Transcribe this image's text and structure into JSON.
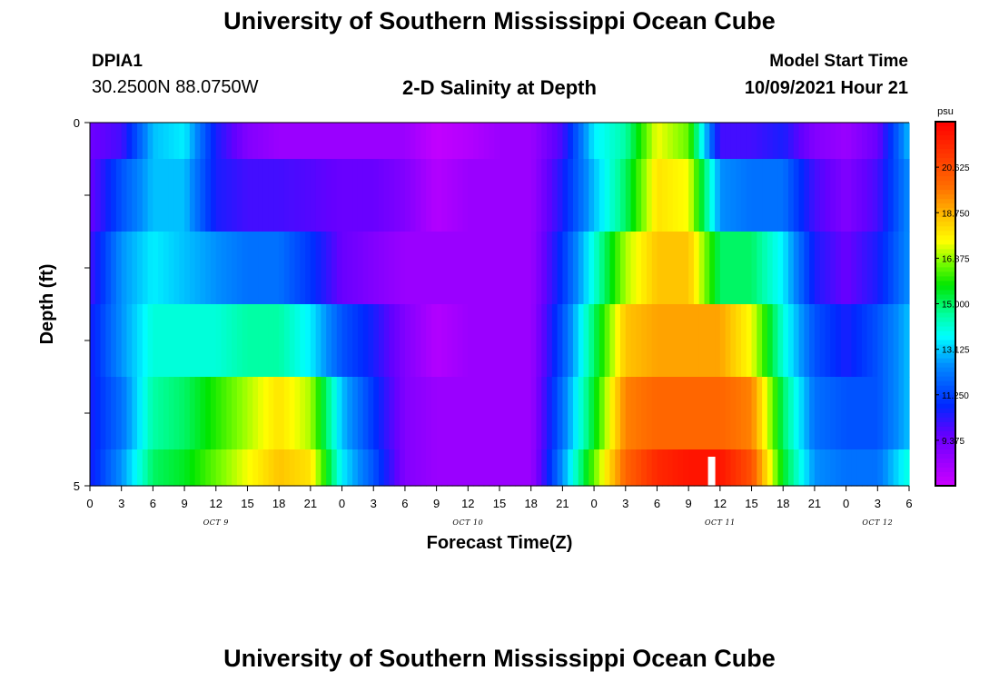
{
  "header": {
    "title_top": "University of Southern Mississippi Ocean Cube",
    "station_id": "DPIA1",
    "coords": "30.2500N  88.0750W",
    "plot_title": "2-D Salinity at Depth",
    "model_start_label": "Model Start Time",
    "model_start_value": "10/09/2021 Hour 21",
    "title_bottom": "University of Southern Mississippi Ocean Cube"
  },
  "chart_data": {
    "type": "heatmap",
    "title": "2-D Salinity at Depth",
    "xlabel": "Forecast Time(Z)",
    "ylabel": "Depth (ft)",
    "ylim": [
      0,
      5
    ],
    "y_tick_labels": [
      "0",
      "5"
    ],
    "x_range_hours": [
      0,
      78
    ],
    "x_tick_labels": [
      "0",
      "3",
      "6",
      "9",
      "12",
      "15",
      "18",
      "21",
      "0",
      "3",
      "6",
      "9",
      "12",
      "15",
      "18",
      "21",
      "0",
      "3",
      "6",
      "9",
      "12",
      "15",
      "18",
      "21",
      "0",
      "3",
      "6"
    ],
    "date_labels": [
      {
        "label": "OCT 9",
        "hour": 12
      },
      {
        "label": "OCT 10",
        "hour": 36
      },
      {
        "label": "OCT 11",
        "hour": 60
      },
      {
        "label": "OCT 12",
        "hour": 75
      }
    ],
    "colorbar": {
      "unit": "psu",
      "min": 7.5,
      "max": 22.5,
      "ticks": [
        "20.625",
        "18.750",
        "16.875",
        "15.000",
        "13.125",
        "11.250",
        "9.375"
      ]
    },
    "time_hours": [
      0,
      3,
      6,
      9,
      12,
      15,
      18,
      21,
      24,
      27,
      30,
      33,
      36,
      39,
      42,
      45,
      48,
      51,
      54,
      57,
      60,
      63,
      66,
      69,
      72,
      75,
      78
    ],
    "depth_layers": [
      {
        "depth": 0.5,
        "values": [
          9.4,
          10.0,
          13.0,
          13.5,
          10.5,
          9.0,
          8.5,
          8.5,
          8.5,
          8.5,
          8.5,
          7.7,
          8.0,
          8.5,
          8.5,
          10.0,
          13.5,
          14.5,
          17.5,
          16.5,
          10.0,
          10.0,
          10.5,
          9.0,
          8.5,
          9.5,
          13.0
        ]
      },
      {
        "depth": 1.5,
        "values": [
          9.5,
          11.5,
          13.0,
          13.0,
          10.5,
          10.0,
          10.0,
          9.8,
          9.5,
          9.5,
          9.0,
          8.0,
          8.5,
          8.5,
          8.5,
          10.5,
          13.0,
          15.0,
          18.0,
          17.5,
          12.5,
          12.0,
          12.0,
          10.0,
          9.0,
          10.0,
          12.5
        ]
      },
      {
        "depth": 2.5,
        "values": [
          10.0,
          12.5,
          13.5,
          13.0,
          12.5,
          12.0,
          12.0,
          11.0,
          9.5,
          9.0,
          8.5,
          8.5,
          8.5,
          8.5,
          8.5,
          11.0,
          14.0,
          17.0,
          18.5,
          18.5,
          15.0,
          15.0,
          13.5,
          10.5,
          9.5,
          10.5,
          12.5
        ]
      },
      {
        "depth": 3.5,
        "values": [
          10.5,
          12.5,
          14.0,
          14.0,
          14.0,
          14.5,
          14.5,
          13.5,
          11.5,
          10.5,
          9.0,
          8.0,
          8.5,
          8.5,
          8.5,
          11.5,
          15.0,
          18.5,
          19.0,
          19.0,
          19.0,
          17.5,
          14.0,
          11.5,
          10.5,
          11.5,
          13.0
        ]
      },
      {
        "depth": 4.5,
        "values": [
          10.5,
          12.0,
          14.5,
          15.0,
          16.0,
          17.0,
          18.0,
          17.0,
          13.0,
          11.0,
          9.0,
          8.5,
          8.5,
          8.5,
          8.5,
          12.0,
          15.5,
          19.5,
          20.0,
          20.0,
          20.0,
          19.5,
          15.0,
          12.0,
          11.5,
          11.5,
          13.0
        ]
      },
      {
        "depth": 5.0,
        "values": [
          10.5,
          12.5,
          15.0,
          15.5,
          16.5,
          17.5,
          18.5,
          18.0,
          13.5,
          11.5,
          9.0,
          8.5,
          8.5,
          8.5,
          8.5,
          12.5,
          16.5,
          20.0,
          21.5,
          22.0,
          22.0,
          20.5,
          15.5,
          12.5,
          12.0,
          12.0,
          14.0
        ]
      }
    ],
    "missing_data_marker_hour": 59.2
  }
}
